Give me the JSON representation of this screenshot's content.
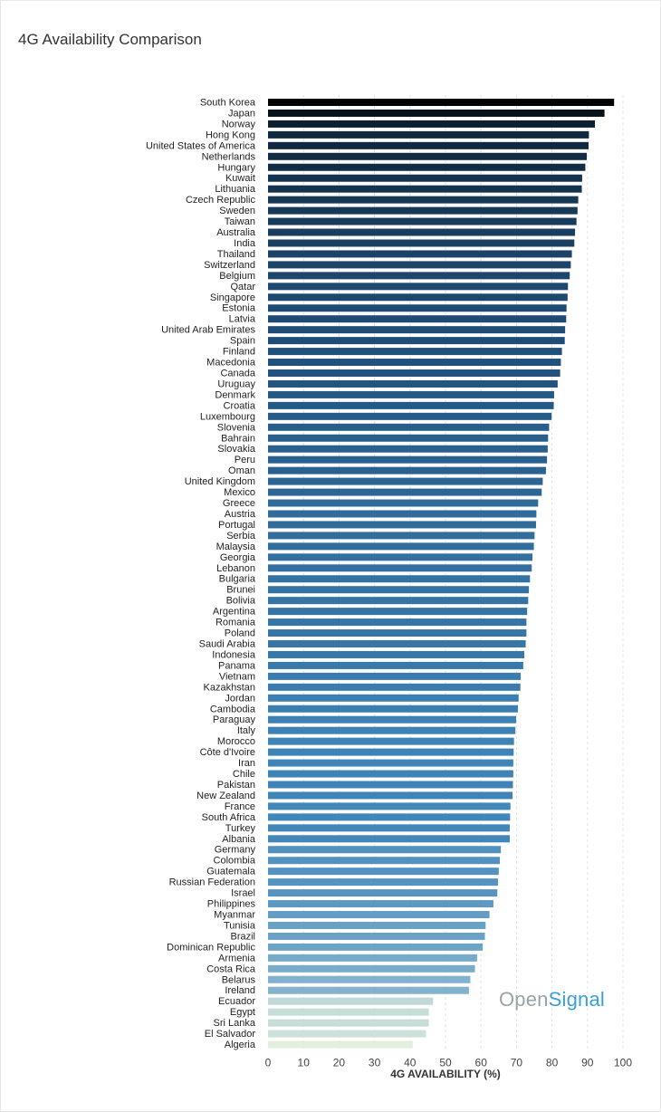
{
  "chart_data": {
    "type": "bar",
    "orientation": "horizontal",
    "title": "4G Availability Comparison",
    "xlabel": "4G AVAILABILITY (%)",
    "ylabel": "",
    "xlim": [
      0,
      100
    ],
    "ticks": [
      0,
      10,
      20,
      30,
      40,
      50,
      60,
      70,
      80,
      90,
      100
    ],
    "grid": "vertical dashed",
    "color_scale": [
      "#e8f2dd",
      "#8fbad0",
      "#3e84b8",
      "#1f4e78",
      "#000000"
    ],
    "categories": [
      "South Korea",
      "Japan",
      "Norway",
      "Hong Kong",
      "United States of America",
      "Netherlands",
      "Hungary",
      "Kuwait",
      "Lithuania",
      "Czech Republic",
      "Sweden",
      "Taiwan",
      "Australia",
      "India",
      "Thailand",
      "Switzerland",
      "Belgium",
      "Qatar",
      "Singapore",
      "Estonia",
      "Latvia",
      "United Arab Emirates",
      "Spain",
      "Finland",
      "Macedonia",
      "Canada",
      "Uruguay",
      "Denmark",
      "Croatia",
      "Luxembourg",
      "Slovenia",
      "Bahrain",
      "Slovakia",
      "Peru",
      "Oman",
      "United Kingdom",
      "Mexico",
      "Greece",
      "Austria",
      "Portugal",
      "Serbia",
      "Malaysia",
      "Georgia",
      "Lebanon",
      "Bulgaria",
      "Brunei",
      "Bolivia",
      "Argentina",
      "Romania",
      "Poland",
      "Saudi Arabia",
      "Indonesia",
      "Panama",
      "Vietnam",
      "Kazakhstan",
      "Jordan",
      "Cambodia",
      "Paraguay",
      "Italy",
      "Morocco",
      "Côte d'Ivoire",
      "Iran",
      "Chile",
      "Pakistan",
      "New Zealand",
      "France",
      "South Africa",
      "Turkey",
      "Albania",
      "Germany",
      "Colombia",
      "Guatemala",
      "Russian Federation",
      "Israel",
      "Philippines",
      "Myanmar",
      "Tunisia",
      "Brazil",
      "Dominican Republic",
      "Armenia",
      "Costa Rica",
      "Belarus",
      "Ireland",
      "Ecuador",
      "Egypt",
      "Sri Lanka",
      "El Salvador",
      "Algeria"
    ],
    "values": [
      97.5,
      94.8,
      92.1,
      90.4,
      90.3,
      89.8,
      89.4,
      88.5,
      88.4,
      87.4,
      87.2,
      86.9,
      86.5,
      86.3,
      85.6,
      85.3,
      85.0,
      84.5,
      84.4,
      84.1,
      84.0,
      83.7,
      83.6,
      82.8,
      82.5,
      82.3,
      81.6,
      80.6,
      80.5,
      79.9,
      79.2,
      78.9,
      78.8,
      78.6,
      78.3,
      77.4,
      77.1,
      76.1,
      75.6,
      75.5,
      75.1,
      74.9,
      74.5,
      74.3,
      73.8,
      73.5,
      73.3,
      73.0,
      72.8,
      72.8,
      72.6,
      72.2,
      71.9,
      71.2,
      71.1,
      70.6,
      70.4,
      69.9,
      69.7,
      69.3,
      69.2,
      69.1,
      69.1,
      69.0,
      68.9,
      68.3,
      68.2,
      68.1,
      68.1,
      65.6,
      65.3,
      65.0,
      64.8,
      64.6,
      63.5,
      62.4,
      61.3,
      61.1,
      60.5,
      58.9,
      58.3,
      57.0,
      56.6,
      46.5,
      45.3,
      45.3,
      44.5,
      40.8
    ]
  },
  "watermark": {
    "part1": "Open",
    "part2": "Signal"
  }
}
